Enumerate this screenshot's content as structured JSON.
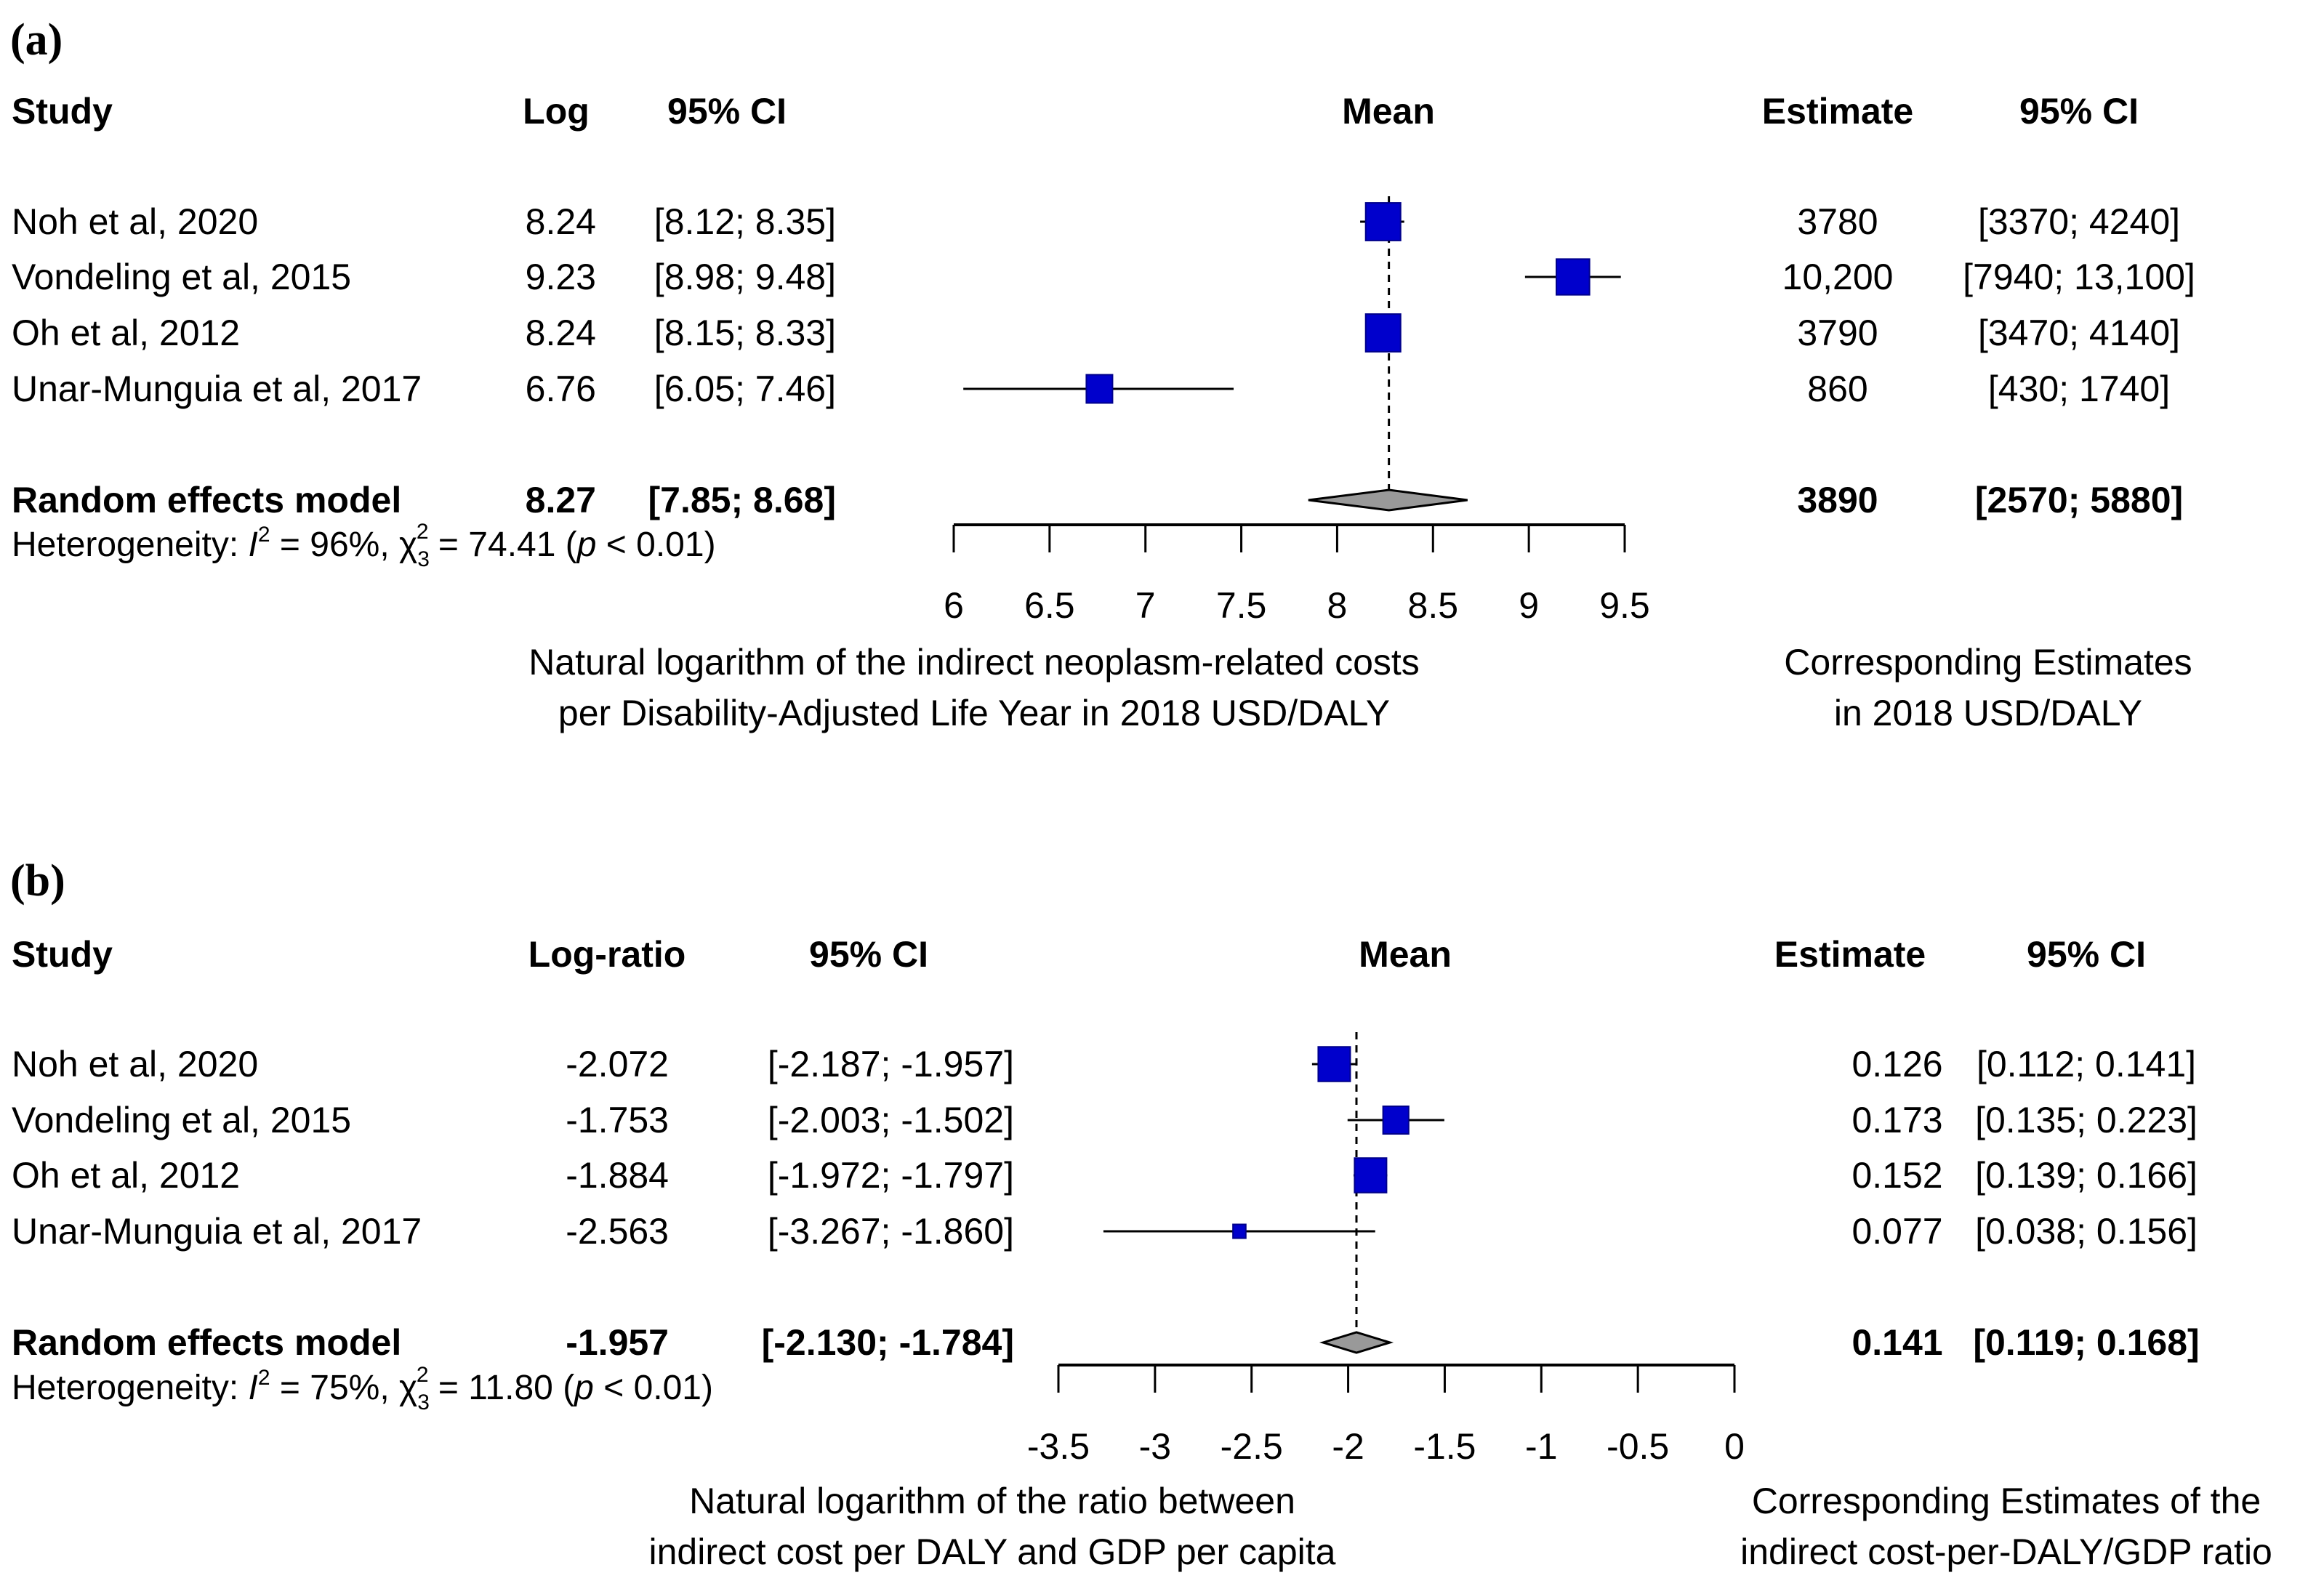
{
  "chart_data": [
    {
      "type": "forest",
      "panel_label": "(a)",
      "headers": {
        "study": "Study",
        "effect": "Log",
        "ci": "95% CI",
        "mean": "Mean",
        "estimate": "Estimate",
        "est_ci": "95% CI"
      },
      "studies": [
        {
          "name": "Noh et al, 2020",
          "effect": 8.24,
          "lower": 8.12,
          "upper": 8.35,
          "effect_text": "8.24",
          "ci_text": "[8.12; 8.35]",
          "estimate_text": "3780",
          "est_ci_text": "[3370; 4240]",
          "weight_rel": 1.0
        },
        {
          "name": "Vondeling et al, 2015",
          "effect": 9.23,
          "lower": 8.98,
          "upper": 9.48,
          "effect_text": "9.23",
          "ci_text": "[8.98; 9.48]",
          "estimate_text": "10,200",
          "est_ci_text": "[7940; 13,100]",
          "weight_rel": 0.95
        },
        {
          "name": "Oh et al, 2012",
          "effect": 8.24,
          "lower": 8.15,
          "upper": 8.33,
          "effect_text": "8.24",
          "ci_text": "[8.15; 8.33]",
          "estimate_text": "3790",
          "est_ci_text": "[3470; 4140]",
          "weight_rel": 1.0
        },
        {
          "name": "Unar-Munguia et al, 2017",
          "effect": 6.76,
          "lower": 6.05,
          "upper": 7.46,
          "effect_text": "6.76",
          "ci_text": "[6.05; 7.46]",
          "estimate_text": "860",
          "est_ci_text": "[430; 1740]",
          "weight_rel": 0.75
        }
      ],
      "pooled": {
        "name": "Random effects model",
        "effect": 8.27,
        "lower": 7.85,
        "upper": 8.68,
        "effect_text": "8.27",
        "ci_text": "[7.85; 8.68]",
        "estimate_text": "3890",
        "est_ci_text": "[2570; 5880]"
      },
      "heterogeneity": {
        "prefix": "Heterogeneity: ",
        "i2_symbol": "I",
        "i2_value": " = 96%, ",
        "chi_symbol": "χ",
        "chi_df": "3",
        "chi_value": " = 74.41 (",
        "p_symbol": "p",
        "p_value": " < 0.01)"
      },
      "xlim": [
        6,
        9.5
      ],
      "xticks": [
        6,
        6.5,
        7,
        7.5,
        8,
        8.5,
        9,
        9.5
      ],
      "xtick_labels": [
        "6",
        "6.5",
        "7",
        "7.5",
        "8",
        "8.5",
        "9",
        "9.5"
      ],
      "xlabel": [
        "Natural logarithm of the indirect neoplasm-related costs",
        "per Disability-Adjusted Life Year in 2018 USD/DALY"
      ],
      "right_label": [
        "Corresponding Estimates",
        "in 2018 USD/DALY"
      ],
      "reference_line": 8.27
    },
    {
      "type": "forest",
      "panel_label": "(b)",
      "headers": {
        "study": "Study",
        "effect": "Log-ratio",
        "ci": "95% CI",
        "mean": "Mean",
        "estimate": "Estimate",
        "est_ci": "95% CI"
      },
      "studies": [
        {
          "name": "Noh et al, 2020",
          "effect": -2.072,
          "lower": -2.187,
          "upper": -1.957,
          "effect_text": "-2.072",
          "ci_text": "[-2.187; -1.957]",
          "estimate_text": "0.126",
          "est_ci_text": "[0.112; 0.141]",
          "weight_rel": 1.0
        },
        {
          "name": "Vondeling et al, 2015",
          "effect": -1.753,
          "lower": -2.003,
          "upper": -1.502,
          "effect_text": "-1.753",
          "ci_text": "[-2.003; -1.502]",
          "estimate_text": "0.173",
          "est_ci_text": "[0.135; 0.223]",
          "weight_rel": 0.8
        },
        {
          "name": "Oh et al, 2012",
          "effect": -1.884,
          "lower": -1.972,
          "upper": -1.797,
          "effect_text": "-1.884",
          "ci_text": "[-1.972; -1.797]",
          "estimate_text": "0.152",
          "est_ci_text": "[0.139; 0.166]",
          "weight_rel": 1.0
        },
        {
          "name": "Unar-Munguia et al, 2017",
          "effect": -2.563,
          "lower": -3.267,
          "upper": -1.86,
          "effect_text": "-2.563",
          "ci_text": "[-3.267; -1.860]",
          "estimate_text": "0.077",
          "est_ci_text": "[0.038; 0.156]",
          "weight_rel": 0.4
        }
      ],
      "pooled": {
        "name": "Random effects model",
        "effect": -1.957,
        "lower": -2.13,
        "upper": -1.784,
        "effect_text": "-1.957",
        "ci_text": "[-2.130; -1.784]",
        "estimate_text": "0.141",
        "est_ci_text": "[0.119; 0.168]"
      },
      "heterogeneity": {
        "prefix": "Heterogeneity: ",
        "i2_symbol": "I",
        "i2_value": " = 75%, ",
        "chi_symbol": "χ",
        "chi_df": "3",
        "chi_value": " = 11.80 (",
        "p_symbol": "p",
        "p_value": " < 0.01)"
      },
      "xlim": [
        -3.5,
        0
      ],
      "xticks": [
        -3.5,
        -3,
        -2.5,
        -2,
        -1.5,
        -1,
        -0.5,
        0
      ],
      "xtick_labels": [
        "-3.5",
        "-3",
        "-2.5",
        "-2",
        "-1.5",
        "-1",
        "-0.5",
        "0"
      ],
      "xlabel": [
        "Natural logarithm of the ratio between",
        "indirect cost per DALY and GDP per capita"
      ],
      "right_label": [
        "Corresponding Estimates of the",
        "indirect cost-per-DALY/GDP ratio"
      ],
      "reference_line": -1.957
    }
  ],
  "colors": {
    "study_marker": "#0000cc",
    "study_marker_border": "#00008b",
    "pooled_diamond": "#999999",
    "line": "#000000"
  }
}
